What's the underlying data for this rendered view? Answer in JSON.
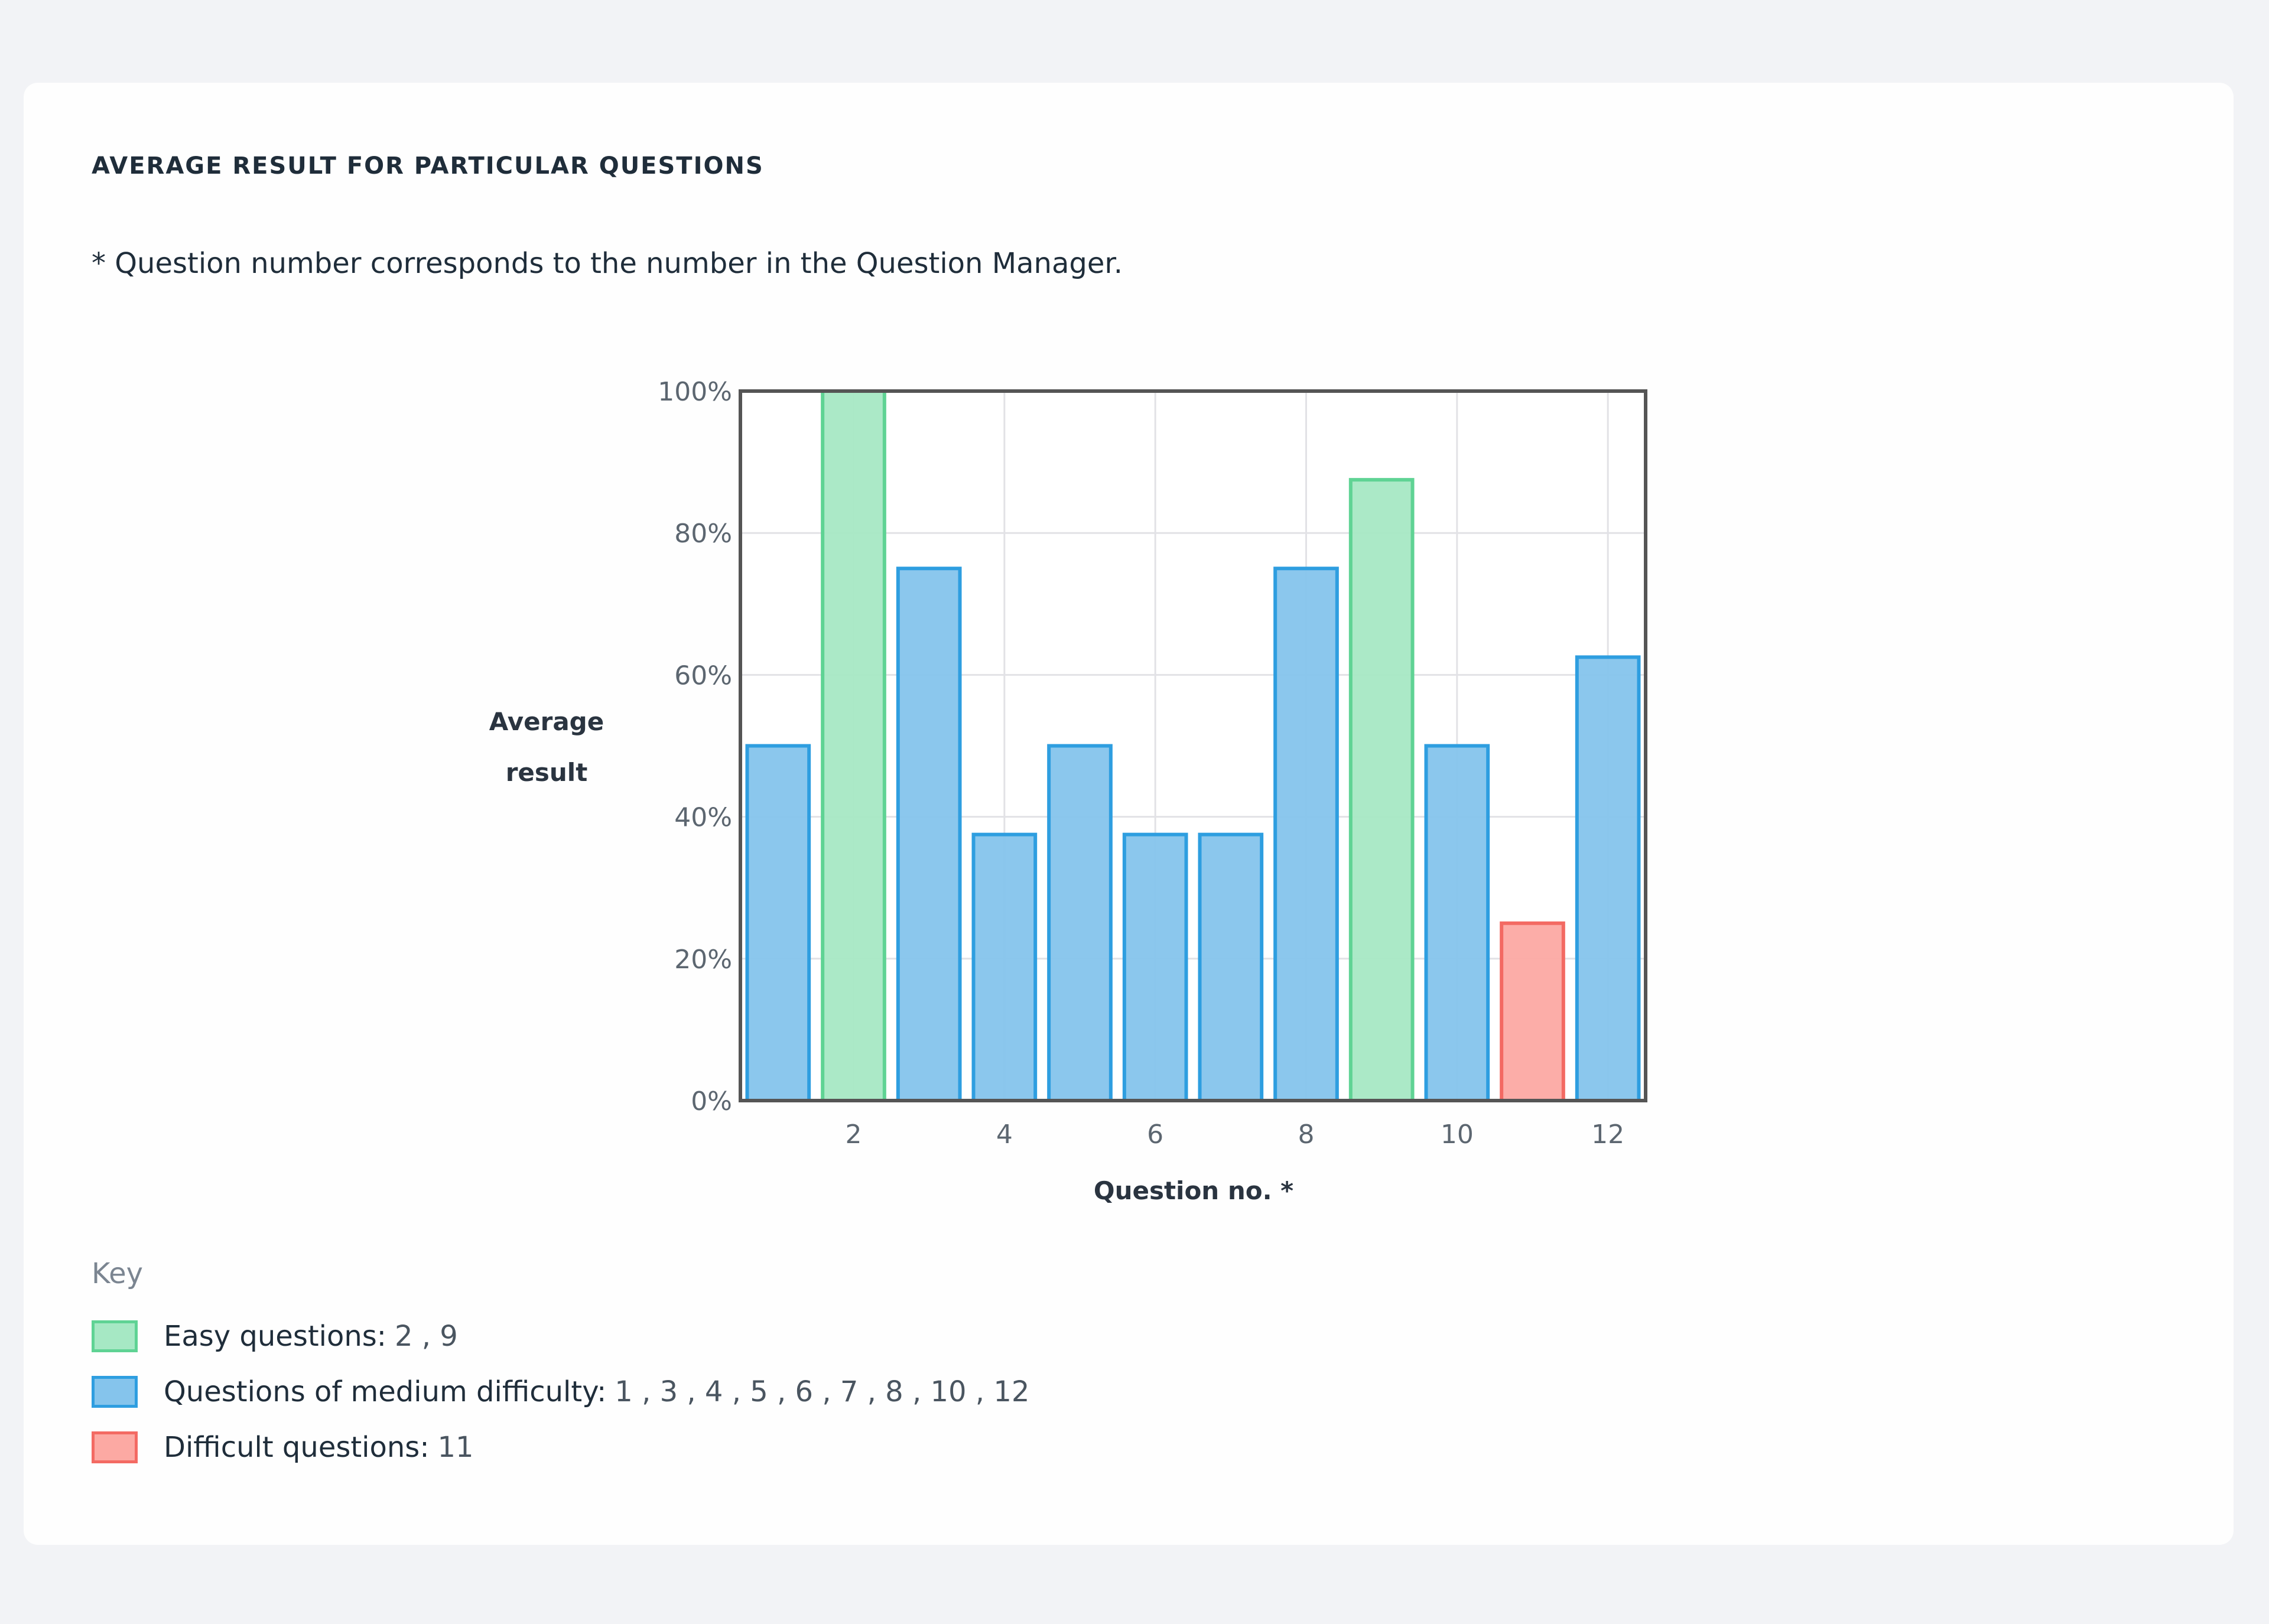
{
  "card": {
    "title": "AVERAGE RESULT FOR PARTICULAR QUESTIONS",
    "note": "* Question number corresponds to the number in the Question Manager."
  },
  "chart_data": {
    "type": "bar",
    "categories": [
      1,
      2,
      3,
      4,
      5,
      6,
      7,
      8,
      9,
      10,
      11,
      12
    ],
    "values": [
      50,
      100,
      75,
      37.5,
      50,
      37.5,
      37.5,
      75,
      87.5,
      50,
      25,
      62.5
    ],
    "difficulty": [
      "medium",
      "easy",
      "medium",
      "medium",
      "medium",
      "medium",
      "medium",
      "medium",
      "easy",
      "medium",
      "difficult",
      "medium"
    ],
    "xlabel": "Question no. *",
    "ylabel": [
      "Average",
      "result"
    ],
    "ylim": [
      0,
      100
    ],
    "yticks": [
      "0%",
      "20%",
      "40%",
      "60%",
      "80%",
      "100%"
    ],
    "ytick_values": [
      0,
      20,
      40,
      60,
      80,
      100
    ],
    "xticks": [
      "2",
      "4",
      "6",
      "8",
      "10",
      "12"
    ],
    "xtick_values": [
      2,
      4,
      6,
      8,
      10,
      12
    ],
    "grid": true,
    "colors": {
      "easy": {
        "fill": "#a6e8c4",
        "stroke": "#5fd394"
      },
      "medium": {
        "fill": "#85c4ec",
        "stroke": "#2e9ee0"
      },
      "difficult": {
        "fill": "#fca9a3",
        "stroke": "#f36a63"
      }
    }
  },
  "key": {
    "title": "Key",
    "items": [
      {
        "label": "Easy questions:",
        "values": "2 , 9",
        "color": "easy"
      },
      {
        "label": "Questions of medium difficulty:",
        "values": "1 , 3 , 4 , 5 , 6 , 7 , 8 , 10 , 12",
        "color": "medium"
      },
      {
        "label": "Difficult questions:",
        "values": "11",
        "color": "difficult"
      }
    ]
  }
}
